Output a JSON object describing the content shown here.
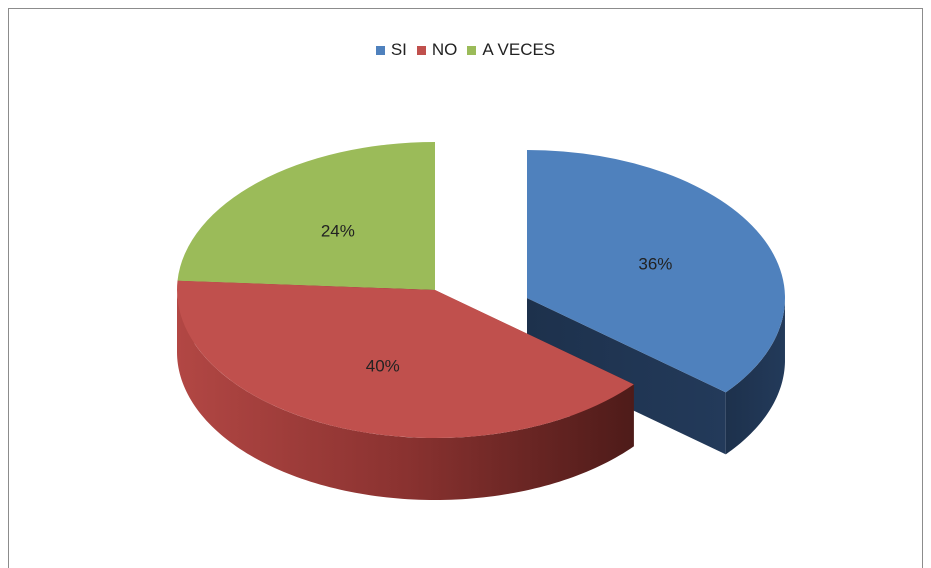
{
  "chart_data": {
    "type": "pie",
    "variant": "3d-exploded",
    "categories": [
      "SI",
      "NO",
      "A VECES"
    ],
    "values": [
      36,
      40,
      24
    ],
    "data_labels": [
      "36%",
      "40%",
      "24%"
    ],
    "colors": [
      "#4f81bd",
      "#c0504d",
      "#9bbb59"
    ],
    "side_colors": [
      "#1f3350",
      "#5a1f1d",
      "#3c4c22"
    ],
    "legend_position": "top",
    "title": ""
  }
}
